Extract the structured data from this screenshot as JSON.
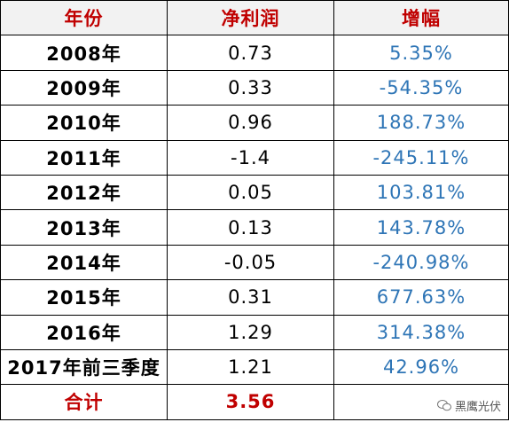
{
  "table": {
    "header": [
      "年份",
      "净利润",
      "增幅"
    ],
    "rows": [
      [
        "2008年",
        "0.73",
        "5.35%"
      ],
      [
        "2009年",
        "0.33",
        "-54.35%"
      ],
      [
        "2010年",
        "0.96",
        "188.73%"
      ],
      [
        "2011年",
        "-1.4",
        "-245.11%"
      ],
      [
        "2012年",
        "0.05",
        "103.81%"
      ],
      [
        "2013年",
        "0.13",
        "143.78%"
      ],
      [
        "2014年",
        "-0.05",
        "-240.98%"
      ],
      [
        "2015年",
        "0.31",
        "677.63%"
      ],
      [
        "2016年",
        "1.29",
        "314.38%"
      ],
      [
        "2017年前三季度",
        "1.21",
        "42.96%"
      ]
    ],
    "total": [
      "合计",
      "3.56"
    ]
  },
  "watermark": "黑鹰光伏"
}
